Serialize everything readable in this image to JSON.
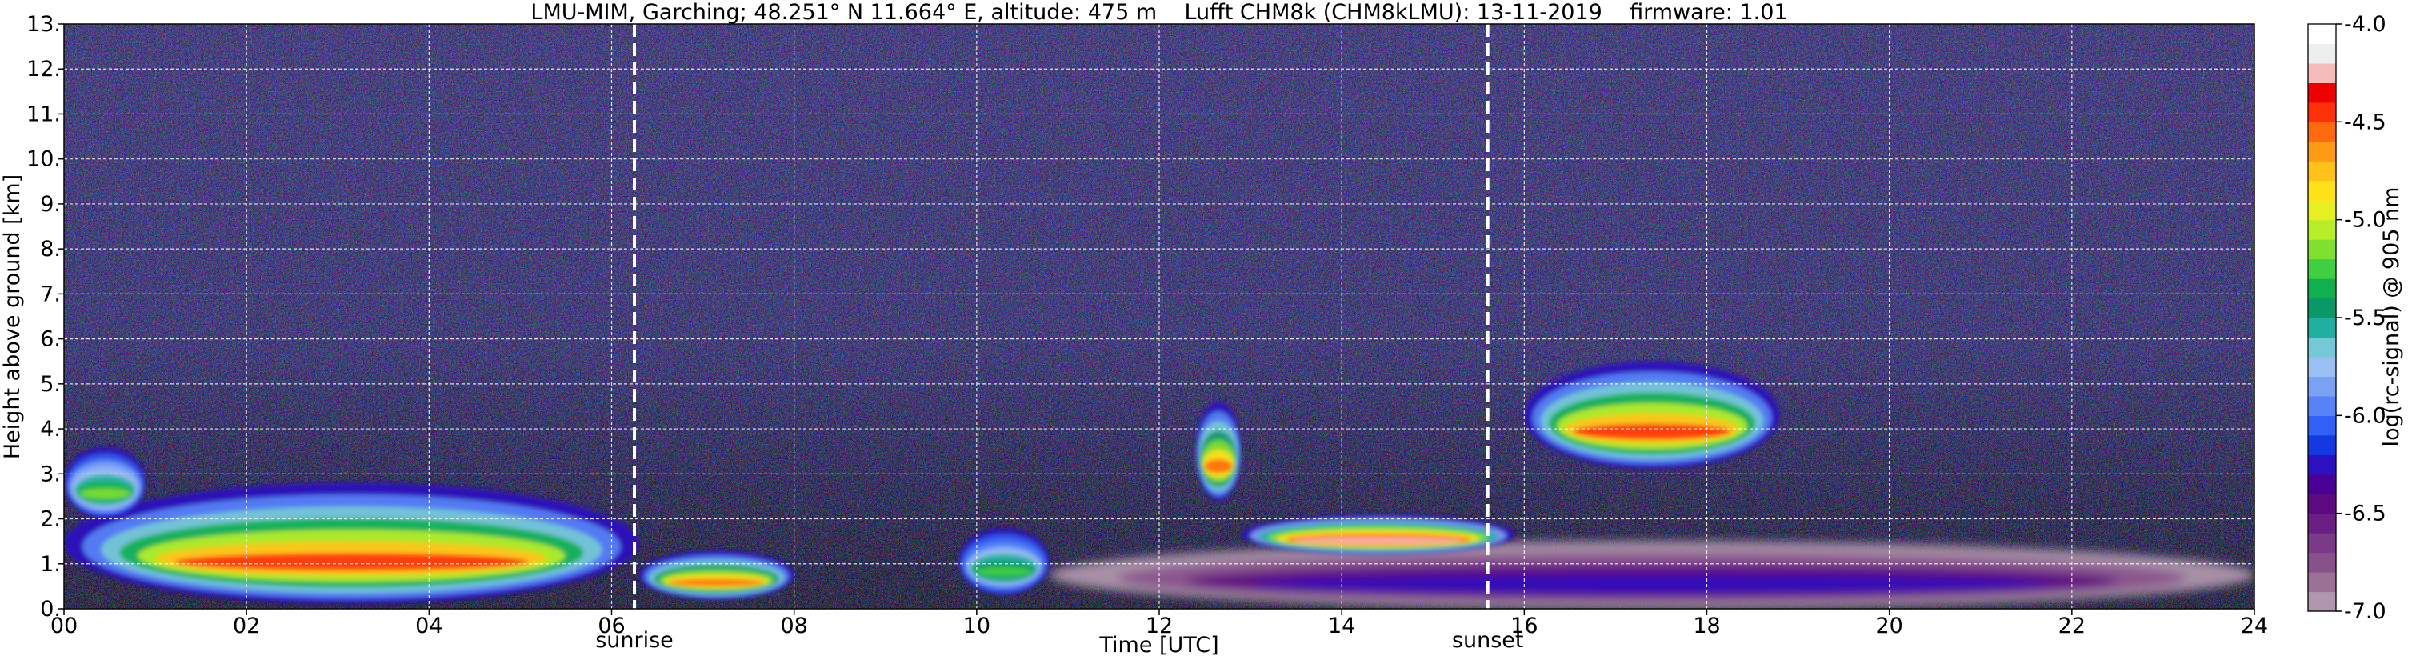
{
  "chart_data": {
    "type": "heatmap",
    "title": "LMU-MIM, Garching; 48.251° N 11.664° E, altitude: 475 m    Lufft CHM8k (CHM8kLMU): 13-11-2019    firmware: 1.01",
    "xlabel": "Time [UTC]",
    "ylabel": "Height above ground [km]",
    "xlim": [
      0,
      24
    ],
    "ylim": [
      0,
      13
    ],
    "x_ticks": [
      "00",
      "02",
      "04",
      "06",
      "08",
      "10",
      "12",
      "14",
      "16",
      "18",
      "20",
      "22",
      "24"
    ],
    "y_ticks": [
      "0.",
      "1.",
      "2.",
      "3.",
      "4.",
      "5.",
      "6.",
      "7.",
      "8.",
      "9.",
      "10.",
      "11.",
      "12.",
      "13."
    ],
    "grid": true,
    "grid_style": "dashed white",
    "colorbar": {
      "label": "log(rc-signal) @ 905 nm",
      "range": [
        -7.0,
        -4.0
      ],
      "ticks": [
        "-4.0",
        "-4.5",
        "-5.0",
        "-5.5",
        "-6.0",
        "-6.5",
        "-7.0"
      ],
      "colors": [
        "#b097ad",
        "#9a7095",
        "#88518b",
        "#7b3a88",
        "#6b1f84",
        "#5b0a80",
        "#4a0095",
        "#2b11c0",
        "#1539e0",
        "#3160f4",
        "#5783f7",
        "#7ba1f5",
        "#9abff2",
        "#75c8d5",
        "#20b0a0",
        "#0a9868",
        "#10b050",
        "#3fcf40",
        "#7fe030",
        "#b8ee28",
        "#e6f020",
        "#ffe11a",
        "#ffc21a",
        "#ff9a14",
        "#ff6a0e",
        "#ff3008",
        "#ee0000",
        "#f6bcbc",
        "#eeeeee",
        "#ffffff"
      ]
    },
    "annotations": [
      {
        "label": "sunrise",
        "time": 6.25
      },
      {
        "label": "sunset",
        "time": 15.6
      }
    ],
    "features": [
      {
        "kind": "aerosol_layer",
        "t0": 0.0,
        "t1": 6.3,
        "z0": 0.1,
        "z1": 2.8,
        "peak": -4.5
      },
      {
        "kind": "aerosol_layer",
        "t0": 6.3,
        "t1": 8.0,
        "z0": 0.2,
        "z1": 1.3,
        "peak": -4.6
      },
      {
        "kind": "aerosol_layer",
        "t0": 9.8,
        "t1": 10.8,
        "z0": 0.3,
        "z1": 1.8,
        "peak": -5.3
      },
      {
        "kind": "residual_layer",
        "t0": 0.0,
        "t1": 0.9,
        "z0": 2.0,
        "z1": 3.6,
        "peak": -5.2
      },
      {
        "kind": "boundary_layer",
        "t0": 10.8,
        "t1": 24.0,
        "z0": 0.0,
        "z1": 1.5,
        "peak": -6.3
      },
      {
        "kind": "cloud",
        "t0": 12.4,
        "t1": 12.9,
        "z0": 2.4,
        "z1": 4.6,
        "peak": -4.6
      },
      {
        "kind": "cloud",
        "t0": 16.0,
        "t1": 18.8,
        "z0": 3.1,
        "z1": 5.5,
        "peak": -4.5
      },
      {
        "kind": "cloud_base",
        "t0": 12.9,
        "t1": 15.9,
        "z0": 1.2,
        "z1": 2.1,
        "peak": -4.2
      }
    ]
  }
}
